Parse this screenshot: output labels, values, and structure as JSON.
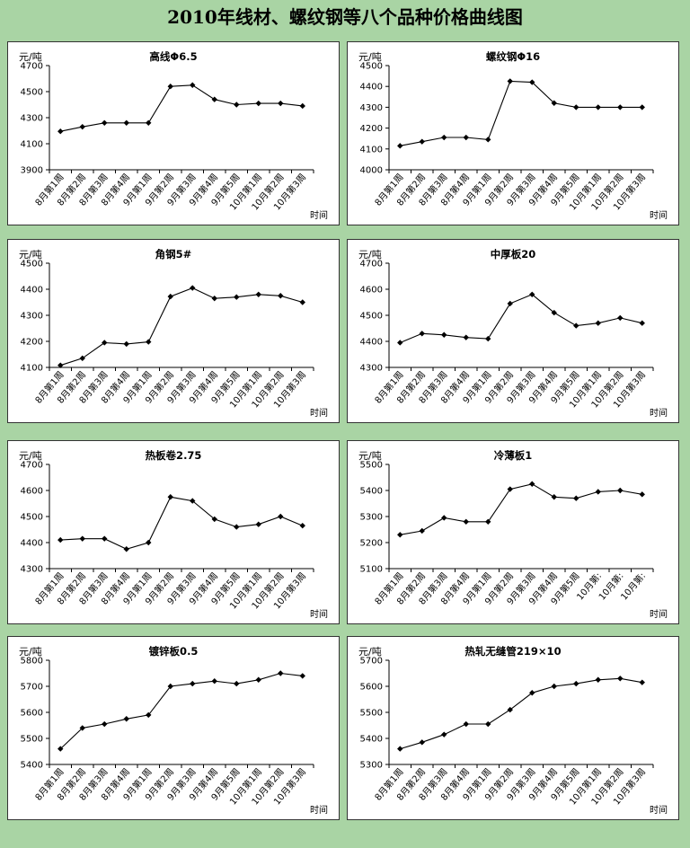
{
  "page_title": "2010年线材、螺纹钢等八个品种价格曲线图",
  "colors": {
    "background": "#a9d4a4",
    "panel": "#ffffff",
    "line": "#000000"
  },
  "chart_data": [
    {
      "type": "line",
      "title": "高线Φ6.5",
      "ylabel": "元/吨",
      "xlabel": "时间",
      "categories": [
        "8月第1周",
        "8月第2周",
        "8月第3周",
        "8月第4周",
        "9月第1周",
        "9月第2周",
        "9月第3周",
        "9月第4周",
        "9月第5周",
        "10月第1周",
        "10月第2周",
        "10月第3周"
      ],
      "yticks": [
        "3900",
        "4100",
        "4300",
        "4500",
        "4700"
      ],
      "ylim": [
        3900,
        4700
      ],
      "series": [
        {
          "values": [
            4195,
            4230,
            4260,
            4260,
            4260,
            4540,
            4550,
            4440,
            4400,
            4410,
            4410,
            4390
          ]
        }
      ]
    },
    {
      "type": "line",
      "title": "螺纹钢Φ16",
      "ylabel": "元/吨",
      "xlabel": "时间",
      "categories": [
        "8月第1周",
        "8月第2周",
        "8月第3周",
        "8月第4周",
        "9月第1周",
        "9月第2周",
        "9月第3周",
        "9月第4周",
        "9月第5周",
        "10月第1周",
        "10月第2周",
        "10月第3周"
      ],
      "yticks": [
        "4000",
        "4100",
        "4200",
        "4300",
        "4400",
        "4500"
      ],
      "ylim": [
        4000,
        4500
      ],
      "series": [
        {
          "values": [
            4115,
            4135,
            4155,
            4155,
            4145,
            4425,
            4420,
            4320,
            4300,
            4300,
            4300,
            4300
          ]
        }
      ]
    },
    {
      "type": "line",
      "title": "角钢5#",
      "ylabel": "元/吨",
      "xlabel": "时间",
      "categories": [
        "8月第1周",
        "8月第2周",
        "8月第3周",
        "8月第4周",
        "9月第1周",
        "9月第2周",
        "9月第3周",
        "9月第4周",
        "9月第5周",
        "10月第1周",
        "10月第2周",
        "10月第3周"
      ],
      "yticks": [
        "4100",
        "4200",
        "4300",
        "4400",
        "4500"
      ],
      "ylim": [
        4100,
        4500
      ],
      "series": [
        {
          "values": [
            4108,
            4135,
            4195,
            4190,
            4198,
            4372,
            4405,
            4365,
            4370,
            4380,
            4375,
            4350
          ]
        }
      ]
    },
    {
      "type": "line",
      "title": "中厚板20",
      "ylabel": "元/吨",
      "xlabel": "时间",
      "categories": [
        "8月第1周",
        "8月第2周",
        "8月第3周",
        "8月第4周",
        "9月第1周",
        "9月第2周",
        "9月第3周",
        "9月第4周",
        "9月第5周",
        "10月第1周",
        "10月第2周",
        "10月第3周"
      ],
      "yticks": [
        "4300",
        "4400",
        "4500",
        "4600",
        "4700"
      ],
      "ylim": [
        4300,
        4700
      ],
      "series": [
        {
          "values": [
            4395,
            4430,
            4425,
            4415,
            4410,
            4545,
            4580,
            4510,
            4460,
            4470,
            4490,
            4470
          ]
        }
      ]
    },
    {
      "type": "line",
      "title": "热板卷2.75",
      "ylabel": "元/吨",
      "xlabel": "时间",
      "categories": [
        "8月第1周",
        "8月第2周",
        "8月第3周",
        "8月第4周",
        "9月第1周",
        "9月第2周",
        "9月第3周",
        "9月第4周",
        "9月第5周",
        "10月第1周",
        "10月第2周",
        "10月第3周"
      ],
      "yticks": [
        "4300",
        "4400",
        "4500",
        "4600",
        "4700"
      ],
      "ylim": [
        4300,
        4700
      ],
      "series": [
        {
          "values": [
            4410,
            4415,
            4415,
            4375,
            4400,
            4575,
            4560,
            4490,
            4460,
            4470,
            4500,
            4465
          ]
        }
      ]
    },
    {
      "type": "line",
      "title": "冷薄板1",
      "ylabel": "元/吨",
      "xlabel": "时间",
      "categories": [
        "8月第1周",
        "8月第2周",
        "8月第3周",
        "8月第4周",
        "9月第1周",
        "9月第2周",
        "9月第3周",
        "9月第4周",
        "9月第5周",
        "10月第:",
        "10月第:",
        "10月第:"
      ],
      "yticks": [
        "5100",
        "5200",
        "5300",
        "5400",
        "5500"
      ],
      "ylim": [
        5100,
        5500
      ],
      "series": [
        {
          "values": [
            5230,
            5245,
            5295,
            5280,
            5280,
            5405,
            5425,
            5375,
            5370,
            5395,
            5400,
            5385
          ]
        }
      ]
    },
    {
      "type": "line",
      "title": "镀锌板0.5",
      "ylabel": "元/吨",
      "xlabel": "时间",
      "categories": [
        "8月第1周",
        "8月第2周",
        "8月第3周",
        "8月第4周",
        "9月第1周",
        "9月第2周",
        "9月第3周",
        "9月第4周",
        "9月第5周",
        "10月第1周",
        "10月第2周",
        "10月第3周"
      ],
      "yticks": [
        "5400",
        "5500",
        "5600",
        "5700",
        "5800"
      ],
      "ylim": [
        5400,
        5800
      ],
      "series": [
        {
          "values": [
            5460,
            5540,
            5555,
            5575,
            5590,
            5700,
            5710,
            5720,
            5710,
            5725,
            5750,
            5740
          ]
        }
      ]
    },
    {
      "type": "line",
      "title": "热轧无缝管219×10",
      "ylabel": "元/吨",
      "xlabel": "时间",
      "categories": [
        "8月第1周",
        "8月第2周",
        "8月第3周",
        "8月第4周",
        "9月第1周",
        "9月第2周",
        "9月第3周",
        "9月第4周",
        "9月第5周",
        "10月第1周",
        "10月第2周",
        "10月第3周"
      ],
      "yticks": [
        "5300",
        "5400",
        "5500",
        "5600",
        "5700"
      ],
      "ylim": [
        5300,
        5700
      ],
      "series": [
        {
          "values": [
            5360,
            5385,
            5415,
            5455,
            5455,
            5510,
            5575,
            5600,
            5610,
            5625,
            5630,
            5615
          ]
        }
      ]
    }
  ]
}
